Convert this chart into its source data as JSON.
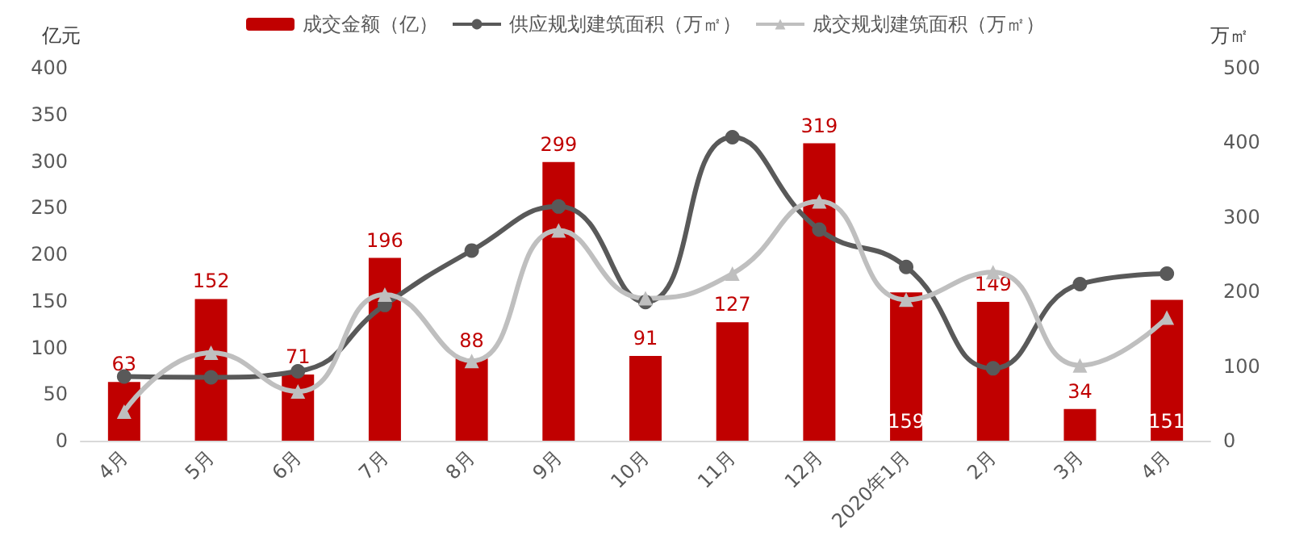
{
  "chart_data": {
    "type": "bar",
    "categories": [
      "4月",
      "5月",
      "6月",
      "7月",
      "8月",
      "9月",
      "10月",
      "11月",
      "12月",
      "2020年1月",
      "2月",
      "3月",
      "4月"
    ],
    "ylabel": "亿元",
    "y2label": "万㎡",
    "ylim": [
      0,
      400
    ],
    "yticks": [
      0,
      50,
      100,
      150,
      200,
      250,
      300,
      350,
      400
    ],
    "y2lim": [
      0,
      500
    ],
    "y2ticks": [
      0,
      100,
      200,
      300,
      400,
      500
    ],
    "grid": false,
    "legend": "top",
    "series": [
      {
        "name": "成交金额（亿）",
        "type": "bar",
        "color": "#c00000",
        "values": [
          63,
          152,
          71,
          196,
          88,
          299,
          91,
          127,
          319,
          159,
          149,
          34,
          151
        ],
        "value_labels": [
          "63",
          "152",
          "71",
          "196",
          "88",
          "299",
          "91",
          "127",
          "319",
          "159",
          "149",
          "34",
          "151"
        ]
      },
      {
        "name": "供应规划建筑面积（万㎡）",
        "type": "line",
        "axis": "y2",
        "color": "#595959",
        "marker": "circle",
        "values": [
          86,
          85,
          93,
          182,
          255,
          314,
          186,
          407,
          283,
          233,
          97,
          210,
          224
        ]
      },
      {
        "name": "成交规划建筑面积（万㎡）",
        "type": "line",
        "axis": "y2",
        "color": "#bfbfbf",
        "marker": "triangle",
        "values": [
          39,
          118,
          66,
          196,
          107,
          282,
          191,
          224,
          321,
          189,
          226,
          101,
          165
        ]
      }
    ]
  }
}
